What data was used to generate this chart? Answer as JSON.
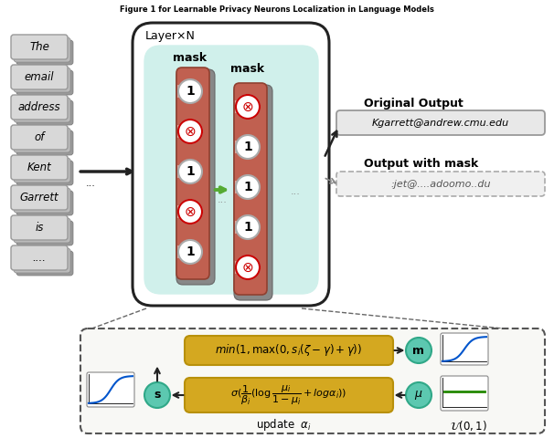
{
  "words": [
    "The",
    "email",
    "address",
    "of",
    "Kent",
    "Garrett",
    "is",
    "...."
  ],
  "layer_label": "Layer×N",
  "mask_label": "mask",
  "original_output_label": "Original Output",
  "original_output_text": "Kgarrett@andrew.cmu.edu",
  "masked_output_label": "Output with mask",
  "masked_output_text": ":jet@....adoomo..du",
  "update_label": "update  $\\alpha_i$",
  "uniform_label": "$\\mathcal{U}(0,1)$",
  "node_m": "m",
  "node_s": "s",
  "node_mu": "$\\mu$",
  "bg_color": "#ffffff",
  "outer_box_fc": "#ffffff",
  "outer_box_ec": "#222222",
  "inner_box_fc": "#d0f0eb",
  "inner_box_ec": "#d0f0eb",
  "formula_box_fc": "#d4a820",
  "formula_box_ec": "#b8900a",
  "node_fc": "#5cc8b0",
  "node_ec": "#30a888",
  "word_box_fc": "#d8d8d8",
  "word_box_ec": "#999999",
  "word_shadow_fc": "#aaaaaa",
  "neuron_bar_fc": "#c06050",
  "neuron_bar_ec": "#904030",
  "neuron_shadow_fc": "#888888",
  "neuron_shadow_ec": "#666666",
  "neuron_circle_fc": "#ffffff",
  "neuron_circle_ec": "#aaaaaa",
  "neuron_x_color": "#cc0000",
  "output_box_fc": "#e8e8e8",
  "output_box_ec": "#999999",
  "masked_box_fc": "#f0f0f0",
  "masked_box_ec": "#aaaaaa",
  "bottom_box_fc": "#f8f8f5",
  "bottom_box_ec": "#555555",
  "arrow_color": "#222222",
  "green_arrow_color": "#55aa33",
  "gray_arrow_color": "#888888",
  "dot_color": "#888888",
  "sigmoid_color": "#0055cc",
  "uniform_line_color": "#228800"
}
